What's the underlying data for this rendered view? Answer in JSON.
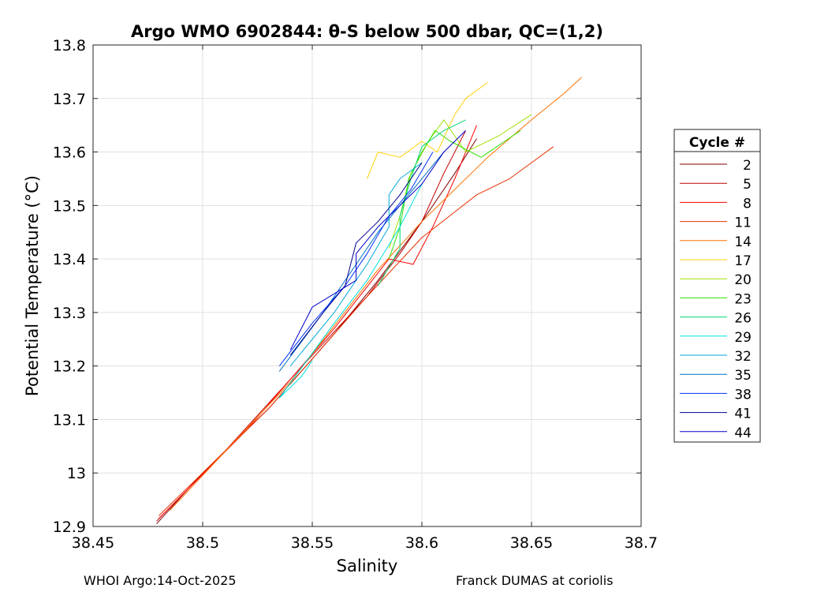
{
  "chart_data": {
    "type": "line",
    "title": "Argo WMO 6902844: θ-S below 500 dbar,  QC=(1,2)",
    "xlabel": "Salinity",
    "ylabel": "Potential Temperature (°C)",
    "xlim": [
      38.45,
      38.7
    ],
    "ylim": [
      12.9,
      13.8
    ],
    "x_ticks": [
      "38.45",
      "38.5",
      "38.55",
      "38.6",
      "38.65",
      "38.7"
    ],
    "y_ticks": [
      "12.9",
      "13",
      "13.1",
      "13.2",
      "13.3",
      "13.4",
      "13.5",
      "13.6",
      "13.7",
      "13.8"
    ],
    "grid": true,
    "legend": {
      "title": "Cycle #",
      "placement": "right"
    },
    "series": [
      {
        "name": "2",
        "color": "#800000",
        "x": [
          38.479,
          38.5,
          38.53,
          38.56,
          38.58,
          38.6,
          38.615,
          38.625
        ],
        "y": [
          12.905,
          13.0,
          13.12,
          13.26,
          13.36,
          13.47,
          13.56,
          13.625
        ]
      },
      {
        "name": "5",
        "color": "#c00000",
        "x": [
          38.479,
          38.51,
          38.55,
          38.575,
          38.59,
          38.6,
          38.61,
          38.62
        ],
        "y": [
          12.91,
          13.04,
          13.22,
          13.33,
          13.41,
          13.47,
          13.56,
          13.64
        ]
      },
      {
        "name": "8",
        "color": "#ff0000",
        "x": [
          38.48,
          38.52,
          38.56,
          38.585,
          38.596,
          38.605,
          38.615,
          38.625
        ],
        "y": [
          12.915,
          13.08,
          13.27,
          13.4,
          13.39,
          13.46,
          13.55,
          13.65
        ]
      },
      {
        "name": "11",
        "color": "#e83000",
        "x": [
          38.48,
          38.53,
          38.575,
          38.6,
          38.625,
          38.64,
          38.65,
          38.66
        ],
        "y": [
          12.92,
          13.12,
          13.33,
          13.44,
          13.52,
          13.55,
          13.58,
          13.61
        ]
      },
      {
        "name": "14",
        "color": "#ff7000",
        "x": [
          38.485,
          38.54,
          38.58,
          38.6,
          38.63,
          38.65,
          38.665,
          38.673
        ],
        "y": [
          12.93,
          13.17,
          13.38,
          13.47,
          13.59,
          13.66,
          13.71,
          13.74
        ]
      },
      {
        "name": "17",
        "color": "#ffd000",
        "x": [
          38.575,
          38.58,
          38.59,
          38.6,
          38.607,
          38.615,
          38.62,
          38.63
        ],
        "y": [
          13.55,
          13.6,
          13.59,
          13.62,
          13.6,
          13.67,
          13.7,
          13.73
        ]
      },
      {
        "name": "20",
        "color": "#a0e000",
        "x": [
          38.585,
          38.59,
          38.595,
          38.603,
          38.61,
          38.62,
          38.635,
          38.65
        ],
        "y": [
          13.42,
          13.48,
          13.56,
          13.62,
          13.66,
          13.6,
          13.63,
          13.67
        ]
      },
      {
        "name": "23",
        "color": "#30e000",
        "x": [
          38.585,
          38.59,
          38.594,
          38.6,
          38.606,
          38.613,
          38.627,
          38.645
        ],
        "y": [
          13.4,
          13.46,
          13.55,
          13.6,
          13.64,
          13.62,
          13.59,
          13.64
        ]
      },
      {
        "name": "26",
        "color": "#00d870",
        "x": [
          38.58,
          38.59,
          38.59,
          38.595,
          38.6,
          38.61,
          38.62
        ],
        "y": [
          13.35,
          13.42,
          13.48,
          13.55,
          13.61,
          13.64,
          13.66
        ]
      },
      {
        "name": "29",
        "color": "#00e0e0",
        "x": [
          38.55,
          38.545,
          38.535,
          38.56,
          38.575,
          38.59,
          38.6
        ],
        "y": [
          13.21,
          13.18,
          13.14,
          13.28,
          13.36,
          13.46,
          13.54
        ]
      },
      {
        "name": "32",
        "color": "#00a8d8",
        "x": [
          38.54,
          38.56,
          38.575,
          38.585,
          38.585,
          38.59,
          38.6
        ],
        "y": [
          13.2,
          13.3,
          13.39,
          13.46,
          13.52,
          13.55,
          13.58
        ]
      },
      {
        "name": "35",
        "color": "#006fc0",
        "x": [
          38.535,
          38.555,
          38.57,
          38.58,
          38.59,
          38.6,
          38.61
        ],
        "y": [
          13.19,
          13.3,
          13.39,
          13.45,
          13.5,
          13.55,
          13.6
        ]
      },
      {
        "name": "38",
        "color": "#0030ff",
        "x": [
          38.535,
          38.55,
          38.565,
          38.575,
          38.585,
          38.595,
          38.605
        ],
        "y": [
          13.2,
          13.28,
          13.35,
          13.41,
          13.48,
          13.53,
          13.6
        ]
      },
      {
        "name": "41",
        "color": "#000090",
        "x": [
          38.54,
          38.555,
          38.565,
          38.57,
          38.58,
          38.59,
          38.6
        ],
        "y": [
          13.22,
          13.3,
          13.35,
          13.43,
          13.47,
          13.52,
          13.58
        ]
      },
      {
        "name": "44",
        "color": "#0000d0",
        "x": [
          38.54,
          38.55,
          38.57,
          38.57,
          38.58,
          38.6,
          38.61,
          38.62
        ],
        "y": [
          13.23,
          13.31,
          13.36,
          13.41,
          13.46,
          13.54,
          13.6,
          13.64
        ]
      }
    ]
  },
  "footer": {
    "left": "WHOI Argo:14-Oct-2025",
    "right": "Franck DUMAS at coriolis"
  }
}
